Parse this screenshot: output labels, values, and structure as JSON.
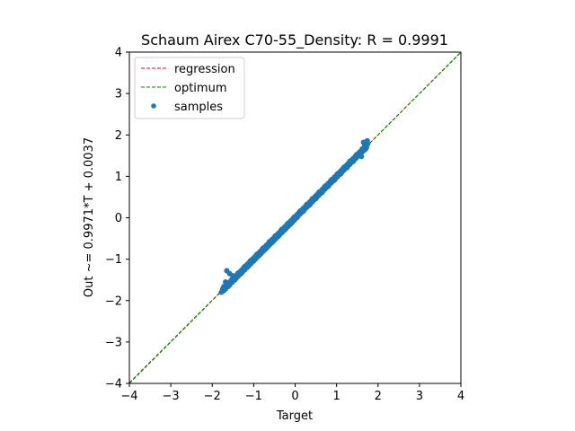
{
  "chart_data": {
    "type": "scatter",
    "title": "Schaum Airex C70-55_Density: R = 0.9991",
    "xlabel": "Target",
    "ylabel": "Out ~= 0.9971*T + 0.0037",
    "xlim": [
      -4,
      4
    ],
    "ylim": [
      -4,
      4
    ],
    "xticks": [
      "−4",
      "−3",
      "−2",
      "−1",
      "0",
      "1",
      "2",
      "3",
      "4"
    ],
    "yticks": [
      "−4",
      "−3",
      "−2",
      "−1",
      "0",
      "1",
      "2",
      "3",
      "4"
    ],
    "grid": false,
    "legend_position": "top-left",
    "regression": {
      "name": "regression",
      "slope": 0.9971,
      "intercept": 0.0037,
      "color": "#ff0000",
      "style": "dashed"
    },
    "optimum": {
      "name": "optimum",
      "slope": 1,
      "intercept": 0,
      "color": "#008000",
      "style": "dashed"
    },
    "samples": {
      "name": "samples",
      "color": "#1f77b4",
      "x": [
        -1.78,
        -1.75,
        -1.72,
        -1.7,
        -1.68,
        -1.65,
        -1.62,
        -1.6,
        -1.58,
        -1.55,
        -1.52,
        -1.5,
        -1.47,
        -1.45,
        -1.42,
        -1.4,
        -1.37,
        -1.35,
        -1.32,
        -1.3,
        -1.27,
        -1.25,
        -1.22,
        -1.2,
        -1.17,
        -1.15,
        -1.12,
        -1.1,
        -1.07,
        -1.05,
        -1.02,
        -1.0,
        -0.97,
        -0.95,
        -0.92,
        -0.9,
        -0.87,
        -0.85,
        -0.82,
        -0.8,
        -0.77,
        -0.75,
        -0.72,
        -0.7,
        -0.67,
        -0.65,
        -0.62,
        -0.6,
        -0.57,
        -0.55,
        -0.52,
        -0.5,
        -0.47,
        -0.45,
        -0.42,
        -0.4,
        -0.37,
        -0.35,
        -0.32,
        -0.3,
        -0.27,
        -0.25,
        -0.22,
        -0.2,
        -0.17,
        -0.15,
        -0.12,
        -0.1,
        -0.07,
        -0.05,
        -0.02,
        0.0,
        0.02,
        0.05,
        0.07,
        0.1,
        0.12,
        0.15,
        0.17,
        0.2,
        0.22,
        0.25,
        0.27,
        0.3,
        0.32,
        0.35,
        0.37,
        0.4,
        0.42,
        0.45,
        0.47,
        0.5,
        0.52,
        0.55,
        0.57,
        0.6,
        0.62,
        0.65,
        0.67,
        0.7,
        0.72,
        0.75,
        0.77,
        0.8,
        0.82,
        0.85,
        0.87,
        0.9,
        0.92,
        0.95,
        0.97,
        1.0,
        1.02,
        1.05,
        1.07,
        1.1,
        1.12,
        1.15,
        1.17,
        1.2,
        1.22,
        1.25,
        1.27,
        1.3,
        1.32,
        1.35,
        1.37,
        1.4,
        1.42,
        1.45,
        1.47,
        1.5,
        1.52,
        1.55,
        1.57,
        1.6,
        1.62,
        1.65,
        1.68,
        1.7,
        1.72,
        1.75,
        -1.72,
        -1.65,
        -1.6,
        -1.52,
        -1.45,
        -1.38,
        -1.3,
        -1.22,
        -1.15,
        -1.08,
        -1.0,
        -0.92,
        -0.85,
        -0.78,
        -0.7,
        -0.62,
        -0.55,
        -0.48,
        -0.4,
        -0.32,
        -0.25,
        -0.18,
        -0.1,
        -0.02,
        0.05,
        0.12,
        0.2,
        0.28,
        0.35,
        0.42,
        0.5,
        0.58,
        0.65,
        0.72,
        0.8,
        0.88,
        0.95,
        1.02,
        1.1,
        1.18,
        1.25,
        1.32,
        1.4,
        1.48,
        1.55,
        1.62,
        1.7,
        1.74,
        -1.65,
        -1.58,
        -1.68,
        -1.5,
        1.65,
        1.72,
        1.68,
        1.6
      ],
      "y": [
        -1.8,
        -1.72,
        -1.76,
        -1.68,
        -1.72,
        -1.62,
        -1.66,
        -1.57,
        -1.62,
        -1.52,
        -1.56,
        -1.47,
        -1.51,
        -1.42,
        -1.46,
        -1.37,
        -1.41,
        -1.32,
        -1.36,
        -1.27,
        -1.31,
        -1.22,
        -1.26,
        -1.17,
        -1.21,
        -1.12,
        -1.16,
        -1.07,
        -1.11,
        -1.02,
        -1.06,
        -0.97,
        -1.01,
        -0.92,
        -0.96,
        -0.87,
        -0.91,
        -0.82,
        -0.86,
        -0.77,
        -0.81,
        -0.72,
        -0.76,
        -0.67,
        -0.71,
        -0.62,
        -0.66,
        -0.57,
        -0.61,
        -0.52,
        -0.56,
        -0.47,
        -0.51,
        -0.42,
        -0.46,
        -0.37,
        -0.41,
        -0.32,
        -0.36,
        -0.27,
        -0.31,
        -0.22,
        -0.26,
        -0.17,
        -0.21,
        -0.12,
        -0.16,
        -0.07,
        -0.11,
        -0.02,
        -0.06,
        0.03,
        -0.01,
        0.08,
        0.04,
        0.13,
        0.09,
        0.18,
        0.14,
        0.23,
        0.19,
        0.28,
        0.24,
        0.33,
        0.29,
        0.38,
        0.34,
        0.43,
        0.39,
        0.48,
        0.44,
        0.53,
        0.49,
        0.58,
        0.54,
        0.63,
        0.59,
        0.68,
        0.64,
        0.73,
        0.69,
        0.78,
        0.74,
        0.83,
        0.79,
        0.88,
        0.84,
        0.93,
        0.89,
        0.98,
        0.94,
        1.03,
        0.99,
        1.08,
        1.04,
        1.13,
        1.09,
        1.18,
        1.14,
        1.23,
        1.19,
        1.28,
        1.24,
        1.33,
        1.29,
        1.38,
        1.34,
        1.43,
        1.39,
        1.48,
        1.44,
        1.53,
        1.49,
        1.58,
        1.54,
        1.63,
        1.59,
        1.68,
        1.64,
        1.73,
        1.69,
        1.78,
        -1.66,
        -1.6,
        -1.64,
        -1.48,
        -1.49,
        -1.34,
        -1.34,
        -1.18,
        -1.19,
        -1.04,
        -1.04,
        -0.88,
        -0.89,
        -0.74,
        -0.74,
        -0.58,
        -0.59,
        -0.44,
        -0.44,
        -0.28,
        -0.29,
        -0.14,
        -0.14,
        0.02,
        0.01,
        0.16,
        0.16,
        0.32,
        0.31,
        0.46,
        0.46,
        0.62,
        0.61,
        0.76,
        0.76,
        0.92,
        0.91,
        1.06,
        1.06,
        1.22,
        1.21,
        1.36,
        1.36,
        1.52,
        1.51,
        1.66,
        1.66,
        1.86,
        -1.28,
        -1.35,
        -1.55,
        -1.4,
        1.82,
        1.7,
        1.76,
        1.48
      ]
    }
  }
}
